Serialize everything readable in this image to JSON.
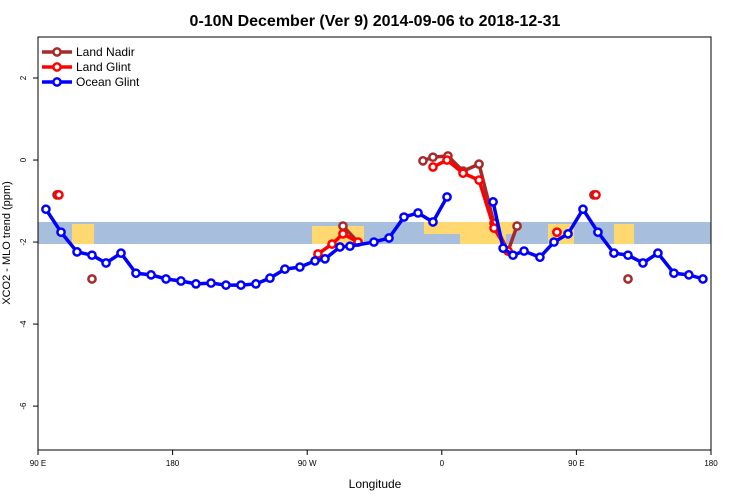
{
  "chart_data": {
    "type": "line",
    "title": "0-10N December (Ver 9)   2014-09-06 to 2018-12-31",
    "x_label": "Longitude",
    "y_label": "XCO2 - MLO trend (ppm)",
    "xlim": [
      90,
      540
    ],
    "ylim": [
      -7.07,
      3.0
    ],
    "xticks": [
      {
        "value": 90,
        "label": "90 E"
      },
      180,
      {
        "value": 270,
        "label": "90 W"
      },
      {
        "value": 360,
        "label": "0"
      },
      {
        "value": 450,
        "label": "90 E"
      },
      {
        "value": 540,
        "label": "180"
      }
    ],
    "yticks": [
      2,
      0,
      -2,
      -4,
      -6
    ],
    "legend": "top-left",
    "series": [
      {
        "name": "Land Nadir",
        "color": "#a52a2a",
        "x": [
          102.7,
          null,
          126.1,
          null,
          293.9,
          304.0,
          null,
          347.4,
          354.1,
          364.1,
          374.2,
          384.9,
          394.9,
          404.3,
          410.3,
          null,
          437.0,
          null,
          461.7,
          null,
          484.5
        ],
        "values": [
          -0.85,
          null,
          -2.9,
          null,
          -1.61,
          -2.0,
          null,
          -0.02,
          0.07,
          0.1,
          -0.27,
          -0.1,
          -1.54,
          -2.22,
          -1.61,
          null,
          -1.76,
          null,
          -0.85,
          null,
          -2.9
        ]
      },
      {
        "name": "Land Glint",
        "color": "#ff0000",
        "x": [
          104.0,
          null,
          277.2,
          286.6,
          293.9,
          304.0,
          null,
          354.1,
          363.5,
          374.2,
          384.9,
          394.9,
          404.3,
          null,
          437.0,
          null,
          463.1
        ],
        "values": [
          -0.85,
          null,
          -2.29,
          -2.05,
          -1.8,
          -2.0,
          null,
          -0.17,
          0.0,
          -0.32,
          -0.49,
          -1.66,
          -2.22,
          null,
          -1.76,
          null,
          -0.85
        ]
      },
      {
        "name": "Ocean Glint",
        "color": "#0000ff",
        "x": [
          95.3,
          105.4,
          116.1,
          126.1,
          135.5,
          145.5,
          155.5,
          165.6,
          175.6,
          185.6,
          195.6,
          205.7,
          215.7,
          225.7,
          235.7,
          245.1,
          255.1,
          265.1,
          275.2,
          281.9,
          291.9,
          298.6,
          314.6,
          324.7,
          334.7,
          344.1,
          354.1,
          363.5,
          null,
          394.3,
          401.0,
          407.6,
          415.0,
          425.6,
          435.0,
          444.4,
          454.4,
          464.4,
          475.1,
          484.5,
          494.5,
          504.5,
          515.2,
          525.2,
          534.6
        ],
        "values": [
          -1.2,
          -1.76,
          -2.24,
          -2.32,
          -2.51,
          -2.27,
          -2.76,
          -2.8,
          -2.9,
          -2.95,
          -3.02,
          -3.0,
          -3.05,
          -3.05,
          -3.02,
          -2.88,
          -2.66,
          -2.61,
          -2.46,
          -2.41,
          -2.12,
          -2.1,
          -2.0,
          -1.9,
          -1.39,
          -1.29,
          -1.51,
          -0.9,
          null,
          -1.02,
          -2.15,
          -2.32,
          -2.22,
          -2.37,
          -2.0,
          -1.8,
          -1.2,
          -1.76,
          -2.27,
          -2.32,
          -2.51,
          -2.27,
          -2.76,
          -2.8,
          -2.9
        ]
      }
    ]
  }
}
